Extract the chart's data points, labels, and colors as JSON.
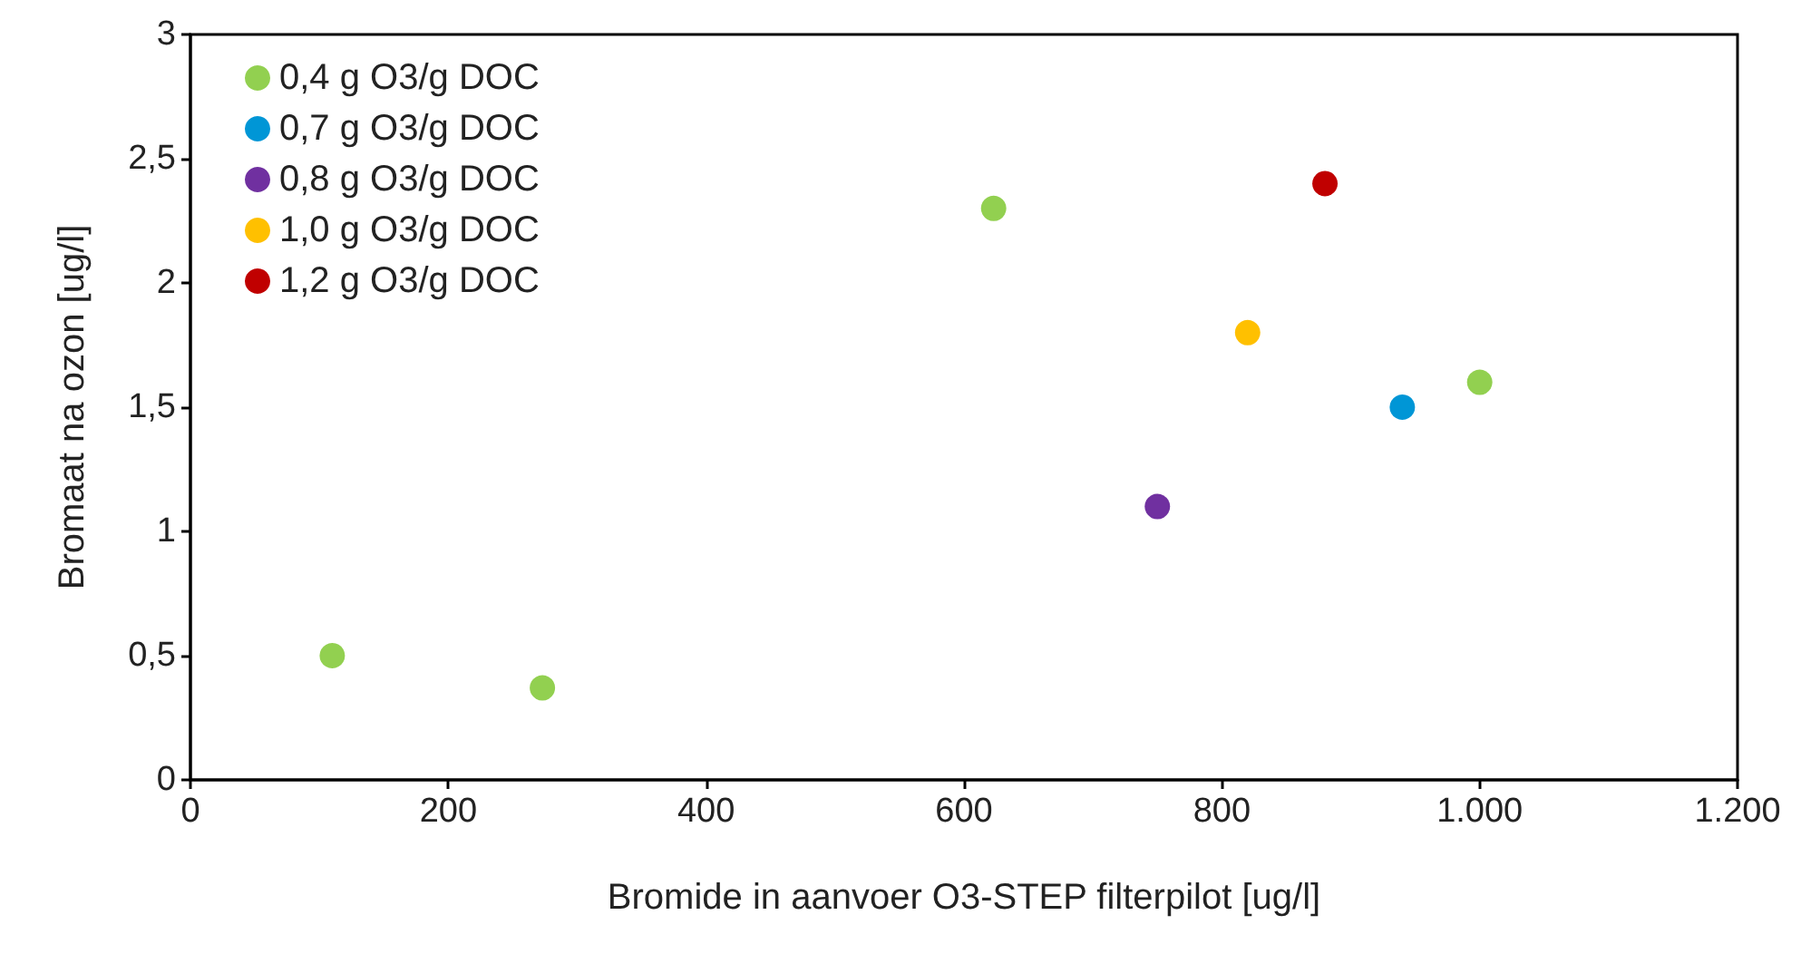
{
  "chart_data": {
    "type": "scatter",
    "xlabel": "Bromide in aanvoer O3-STEP filterpilot [ug/l]",
    "ylabel": "Bromaat na ozon [ug/l]",
    "xlim": [
      0,
      1200
    ],
    "xticks": [
      0,
      200,
      400,
      600,
      800,
      {
        "value": 1000,
        "label": "1.000"
      },
      {
        "value": 1200,
        "label": "1.200"
      }
    ],
    "ylim": [
      0,
      3
    ],
    "yticks": [
      0,
      {
        "value": 0.5,
        "label": "0,5"
      },
      1,
      {
        "value": 1.5,
        "label": "1,5"
      },
      2,
      {
        "value": 2.5,
        "label": "2,5"
      },
      3
    ],
    "grid": false,
    "legend": "top left",
    "marker": "circle",
    "series": [
      {
        "name": "0,4 g O3/g DOC",
        "color": "#92d050",
        "x": [
          110,
          273,
          623,
          1000
        ],
        "values": [
          0.5,
          0.37,
          2.3,
          1.6
        ]
      },
      {
        "name": "0,7 g O3/g DOC",
        "color": "#0096d6",
        "x": [
          940
        ],
        "values": [
          1.5
        ]
      },
      {
        "name": "0,8 g O3/g DOC",
        "color": "#7030a0",
        "x": [
          750
        ],
        "values": [
          1.1
        ]
      },
      {
        "name": "1,0 g O3/g DOC",
        "color": "#ffc000",
        "x": [
          820
        ],
        "values": [
          1.8
        ]
      },
      {
        "name": "1,2 g O3/g DOC",
        "color": "#c00000",
        "x": [
          880
        ],
        "values": [
          2.4
        ]
      }
    ]
  }
}
